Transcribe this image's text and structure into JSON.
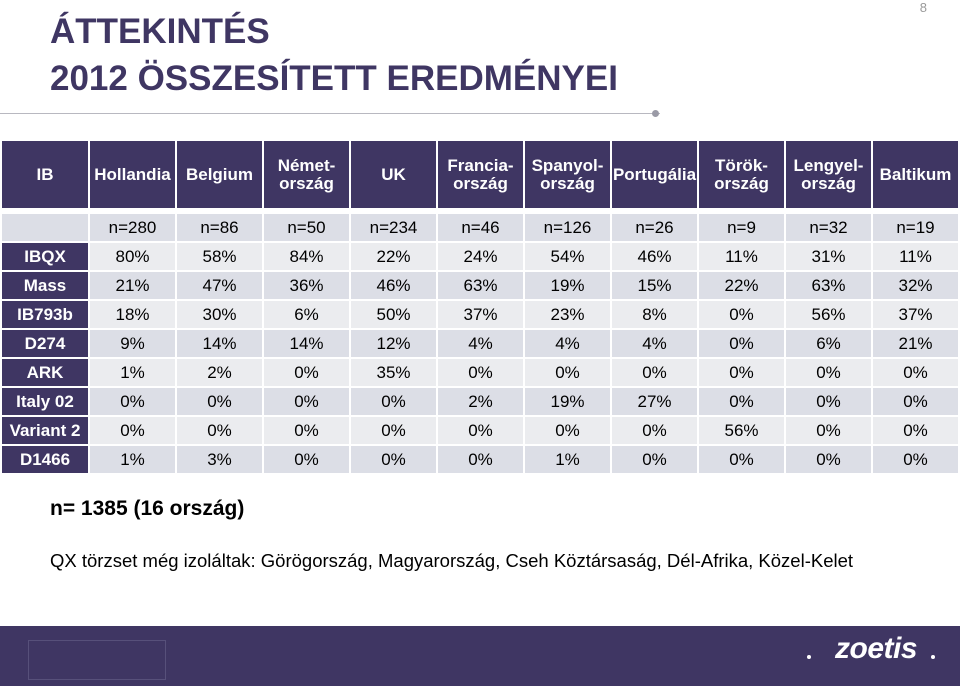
{
  "page_number": "8",
  "title_line1": "ÁTTEKINTÉS",
  "title_line2": "2012 ÖSSZESÍTETT EREDMÉNYEI",
  "table": {
    "corner_header": "IB",
    "countries": [
      "Hollandia",
      "Belgium",
      "Német-\nország",
      "UK",
      "Francia-\nország",
      "Spanyol-\nország",
      "Portugália",
      "Török-\nország",
      "Lengyel-\nország",
      "Baltikum"
    ],
    "sample_sizes": [
      "n=280",
      "n=86",
      "n=50",
      "n=234",
      "n=46",
      "n=126",
      "n=26",
      "n=9",
      "n=32",
      "n=19"
    ],
    "rows": [
      {
        "label": "IBQX",
        "values": [
          "80%",
          "58%",
          "84%",
          "22%",
          "24%",
          "54%",
          "46%",
          "11%",
          "31%",
          "11%"
        ]
      },
      {
        "label": "Mass",
        "values": [
          "21%",
          "47%",
          "36%",
          "46%",
          "63%",
          "19%",
          "15%",
          "22%",
          "63%",
          "32%"
        ]
      },
      {
        "label": "IB793b",
        "values": [
          "18%",
          "30%",
          "6%",
          "50%",
          "37%",
          "23%",
          "8%",
          "0%",
          "56%",
          "37%"
        ]
      },
      {
        "label": "D274",
        "values": [
          "9%",
          "14%",
          "14%",
          "12%",
          "4%",
          "4%",
          "4%",
          "0%",
          "6%",
          "21%"
        ]
      },
      {
        "label": "ARK",
        "values": [
          "1%",
          "2%",
          "0%",
          "35%",
          "0%",
          "0%",
          "0%",
          "0%",
          "0%",
          "0%"
        ]
      },
      {
        "label": "Italy 02",
        "values": [
          "0%",
          "0%",
          "0%",
          "0%",
          "2%",
          "19%",
          "27%",
          "0%",
          "0%",
          "0%"
        ]
      },
      {
        "label": "Variant 2",
        "values": [
          "0%",
          "0%",
          "0%",
          "0%",
          "0%",
          "0%",
          "0%",
          "56%",
          "0%",
          "0%"
        ]
      },
      {
        "label": "D1466",
        "values": [
          "1%",
          "3%",
          "0%",
          "0%",
          "0%",
          "1%",
          "0%",
          "0%",
          "0%",
          "0%"
        ]
      }
    ]
  },
  "summary": "n= 1385 (16 ország)",
  "note": "QX törzset még izoláltak: Görögország, Magyarország, Cseh Köztársaság, Dél-Afrika, Közel-Kelet",
  "logo_text": "zoetis",
  "colors": {
    "brand": "#3f3663",
    "row_light": "#ebecef",
    "row_dark": "#dcdee6"
  }
}
